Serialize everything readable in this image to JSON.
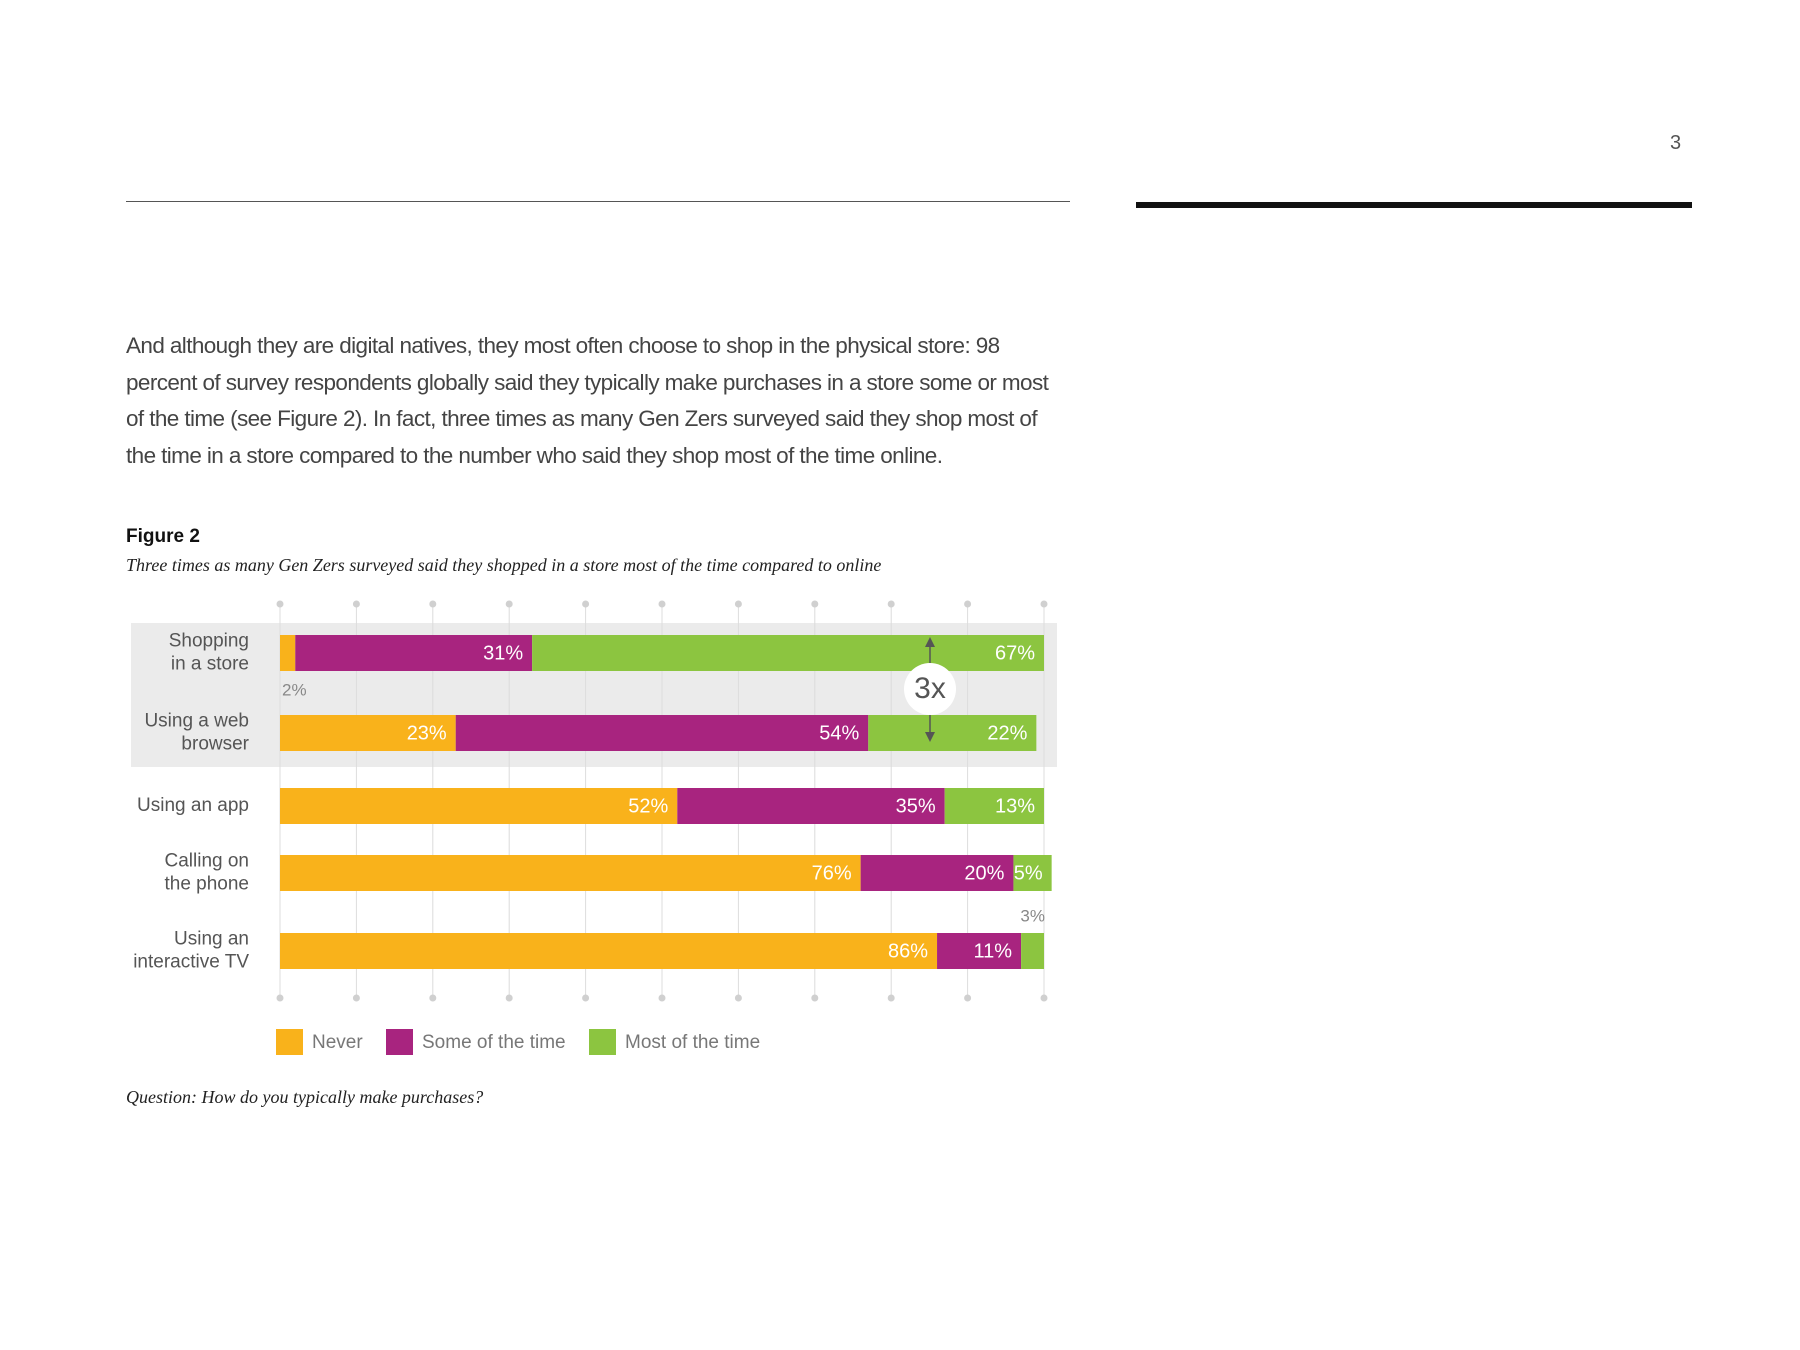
{
  "page_number": "3",
  "paragraph": "And although they are digital natives, they most often choose to shop in the physical store: 98 percent of survey respondents globally said they typically make purchases in a store some or most of the time (see Figure 2). In fact, three times as many Gen Zers surveyed said they shop most of the time in a store compared to the number who said they shop most of the time online.",
  "figure_label": "Figure 2",
  "figure_caption": "Three times as many Gen Zers surveyed said they shopped in a store most of the time compared to online",
  "question": "Question: How do you typically make purchases?",
  "chart_data": {
    "type": "bar",
    "stacked": true,
    "orientation": "horizontal",
    "categories": [
      "Shopping\nin a store",
      "Using a web\nbrowser",
      "Using an app",
      "Calling on\nthe phone",
      "Using an\ninteractive TV"
    ],
    "series": [
      {
        "name": "Never",
        "color": "#f9b21b",
        "values": [
          2,
          23,
          52,
          76,
          86
        ],
        "value_labels": [
          "2%",
          "23%",
          "52%",
          "76%",
          "86%"
        ]
      },
      {
        "name": "Some of the time",
        "color": "#a8247f",
        "values": [
          31,
          54,
          35,
          20,
          11
        ],
        "value_labels": [
          "31%",
          "54%",
          "35%",
          "20%",
          "11%"
        ]
      },
      {
        "name": "Most of the time",
        "color": "#8cc540",
        "values": [
          67,
          22,
          13,
          5,
          3
        ],
        "value_labels": [
          "67%",
          "22%",
          "13%",
          "5%",
          "3%"
        ]
      }
    ],
    "xlim": [
      0,
      100
    ],
    "xticks": [
      0,
      10,
      20,
      30,
      40,
      50,
      60,
      70,
      80,
      90,
      100
    ],
    "grid": true,
    "annotation": "3x",
    "legend": "bottom"
  }
}
